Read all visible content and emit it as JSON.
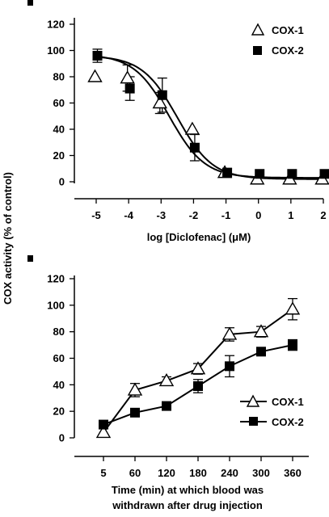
{
  "shared_ylabel": "COX activity (% of control)",
  "chart_data": [
    {
      "type": "scatter",
      "xlabel": "log [Diclofenac] (μM)",
      "ylabel": "COX activity (% of control)",
      "xlim": [
        -5,
        2
      ],
      "ylim": [
        0,
        120
      ],
      "x_ticks": [
        "-5",
        "-4",
        "-3",
        "-2",
        "-1",
        "0",
        "1",
        "2"
      ],
      "y_ticks": [
        "0",
        "20",
        "40",
        "60",
        "80",
        "100",
        "120"
      ],
      "legend_position": "top-right",
      "grid": false,
      "series": [
        {
          "name": "COX-1",
          "marker": "open-triangle",
          "x": [
            -5,
            -4,
            -3,
            -2,
            -1,
            0,
            1,
            2
          ],
          "y": [
            80,
            79,
            60,
            40,
            7,
            2,
            2,
            2
          ],
          "err": [
            0,
            10,
            8,
            0,
            0,
            0,
            0,
            0
          ],
          "fit": "sigmoid"
        },
        {
          "name": "COX-2",
          "marker": "filled-square",
          "x": [
            -5,
            -4,
            -3,
            -2,
            -1,
            0,
            1,
            2
          ],
          "y": [
            96,
            71,
            66,
            26,
            7,
            6,
            6,
            6
          ],
          "err": [
            5,
            9,
            13,
            10,
            3,
            0,
            0,
            0
          ],
          "fit": "sigmoid"
        }
      ]
    },
    {
      "type": "line",
      "xlabel_line1": "Time (min) at which blood was",
      "xlabel_line2": "withdrawn after drug injection",
      "ylabel": "COX activity (% of control)",
      "categories": [
        "5",
        "60",
        "120",
        "180",
        "240",
        "300",
        "360"
      ],
      "ylim": [
        0,
        120
      ],
      "y_ticks": [
        "0",
        "20",
        "40",
        "60",
        "80",
        "100",
        "120"
      ],
      "legend_position": "bottom-right",
      "grid": false,
      "series": [
        {
          "name": "COX-1",
          "marker": "open-triangle",
          "values": [
            4,
            36,
            43,
            52,
            78,
            80,
            97
          ],
          "err": [
            0,
            5,
            3,
            4,
            5,
            4,
            8
          ]
        },
        {
          "name": "COX-2",
          "marker": "filled-square",
          "values": [
            10,
            19,
            24,
            39,
            54,
            65,
            70
          ],
          "err": [
            2,
            2,
            2,
            5,
            8,
            2,
            4
          ]
        }
      ]
    }
  ]
}
